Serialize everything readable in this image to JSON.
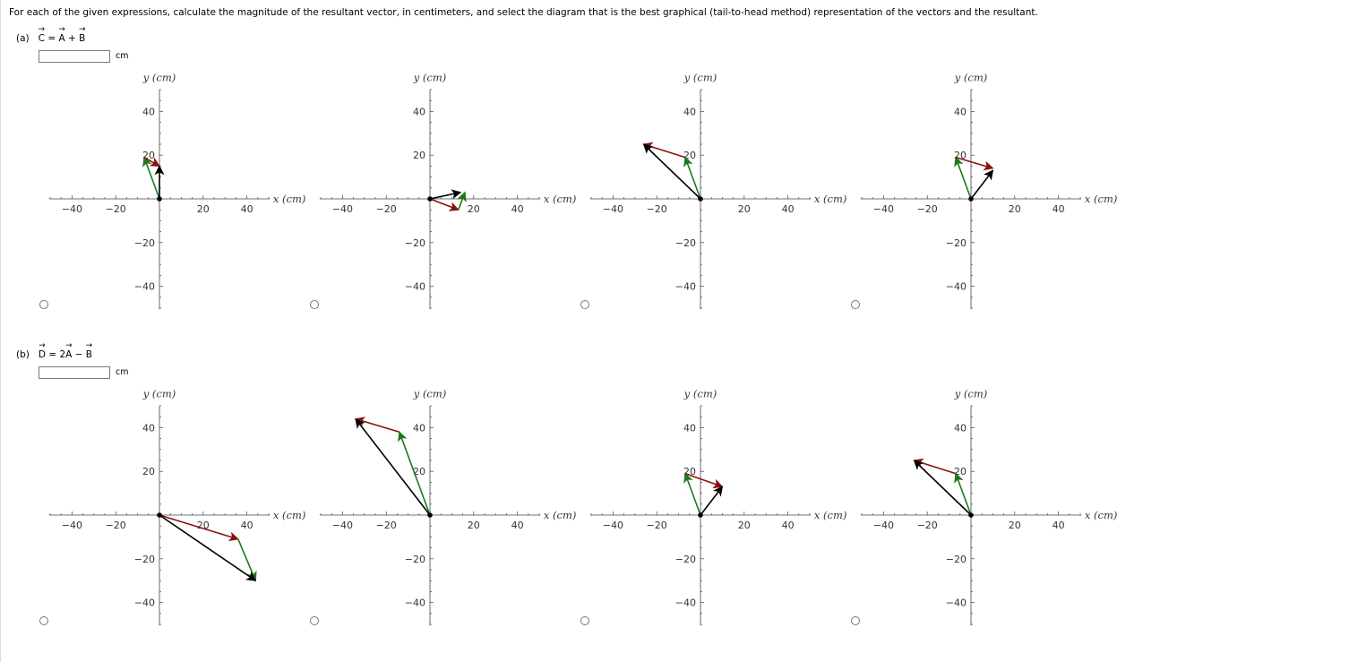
{
  "instruction": "For each of the given expressions, calculate the magnitude of the resultant vector, in centimeters, and select the diagram that is the best graphical (tail-to-head method) representation of the vectors and the resultant.",
  "parts": [
    {
      "label": "(a)",
      "eq": {
        "lhs": "C",
        "mid": " = ",
        "a": "A",
        "op": " + ",
        "b": "B"
      },
      "unit": "cm",
      "answer_value": "",
      "options": [
        {
          "vectors": [
            {
              "from": [
                0,
                0
              ],
              "to": [
                -7,
                19
              ],
              "color": "green"
            },
            {
              "from": [
                -7,
                19
              ],
              "to": [
                0,
                15
              ],
              "color": "red"
            },
            {
              "from": [
                0,
                0
              ],
              "to": [
                0,
                15
              ],
              "color": "black"
            }
          ]
        },
        {
          "vectors": [
            {
              "from": [
                0,
                0
              ],
              "to": [
                13,
                -5
              ],
              "color": "red"
            },
            {
              "from": [
                13,
                -5
              ],
              "to": [
                16,
                3
              ],
              "color": "green"
            },
            {
              "from": [
                0,
                0
              ],
              "to": [
                14,
                3
              ],
              "color": "black"
            }
          ]
        },
        {
          "vectors": [
            {
              "from": [
                0,
                0
              ],
              "to": [
                -7,
                19
              ],
              "color": "green"
            },
            {
              "from": [
                -7,
                19
              ],
              "to": [
                -26,
                25
              ],
              "color": "red"
            },
            {
              "from": [
                0,
                0
              ],
              "to": [
                -26,
                25
              ],
              "color": "black"
            }
          ]
        },
        {
          "vectors": [
            {
              "from": [
                0,
                0
              ],
              "to": [
                -7,
                19
              ],
              "color": "green"
            },
            {
              "from": [
                -7,
                19
              ],
              "to": [
                10,
                14
              ],
              "color": "red"
            },
            {
              "from": [
                0,
                0
              ],
              "to": [
                10,
                13
              ],
              "color": "black"
            }
          ]
        }
      ]
    },
    {
      "label": "(b)",
      "eq": {
        "lhs": "D",
        "mid": " = 2",
        "a": "A",
        "op": " − ",
        "b": "B"
      },
      "unit": "cm",
      "answer_value": "",
      "options": [
        {
          "vectors": [
            {
              "from": [
                0,
                0
              ],
              "to": [
                36,
                -11
              ],
              "color": "red"
            },
            {
              "from": [
                36,
                -11
              ],
              "to": [
                44,
                -30
              ],
              "color": "green"
            },
            {
              "from": [
                0,
                0
              ],
              "to": [
                44,
                -30
              ],
              "color": "black"
            }
          ]
        },
        {
          "vectors": [
            {
              "from": [
                0,
                0
              ],
              "to": [
                -14,
                38
              ],
              "color": "green"
            },
            {
              "from": [
                -14,
                38
              ],
              "to": [
                -34,
                44
              ],
              "color": "red"
            },
            {
              "from": [
                0,
                0
              ],
              "to": [
                -34,
                44
              ],
              "color": "black"
            }
          ]
        },
        {
          "vectors": [
            {
              "from": [
                0,
                0
              ],
              "to": [
                -7,
                19
              ],
              "color": "green"
            },
            {
              "from": [
                -7,
                19
              ],
              "to": [
                10,
                13
              ],
              "color": "red"
            },
            {
              "from": [
                0,
                0
              ],
              "to": [
                10,
                13
              ],
              "color": "black"
            }
          ]
        },
        {
          "vectors": [
            {
              "from": [
                0,
                0
              ],
              "to": [
                -7,
                19
              ],
              "color": "green"
            },
            {
              "from": [
                -7,
                19
              ],
              "to": [
                -26,
                25
              ],
              "color": "red"
            },
            {
              "from": [
                0,
                0
              ],
              "to": [
                -26,
                25
              ],
              "color": "black"
            }
          ]
        }
      ]
    }
  ],
  "axis": {
    "xlabel": "x (cm)",
    "ylabel": "y (cm)",
    "xlim": [
      -50,
      50
    ],
    "ylim": [
      -50,
      50
    ],
    "x_ticks": [
      "−40",
      "−20",
      "20",
      "40"
    ],
    "y_ticks": [
      "40",
      "20",
      "−20",
      "−40"
    ],
    "tick_values": [
      -40,
      -20,
      20,
      40
    ],
    "y_tick_values": [
      40,
      20,
      -20,
      -40
    ]
  },
  "colors": {
    "green": "#1a7a1a",
    "red": "#8b1010",
    "black": "#000000",
    "axis": "#444444"
  }
}
